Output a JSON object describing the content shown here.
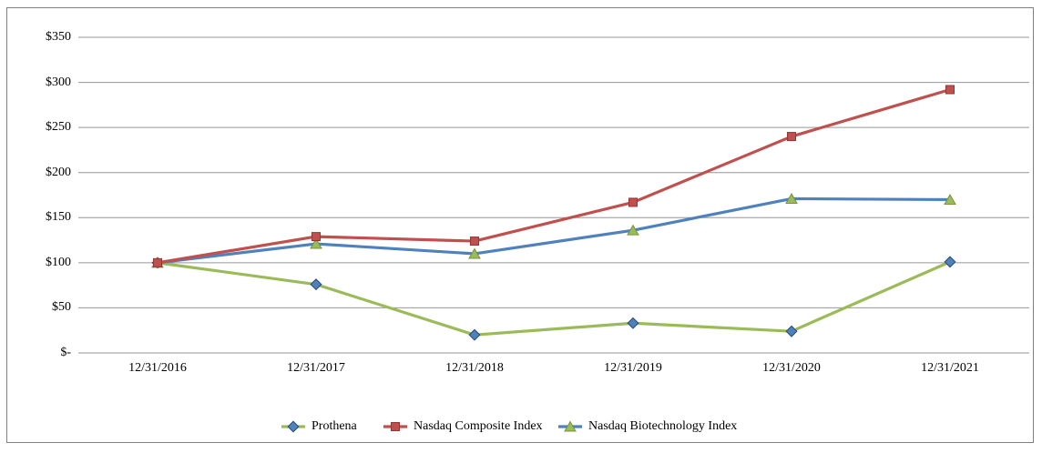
{
  "chart_data": {
    "type": "line",
    "title": "",
    "xlabel": "",
    "ylabel": "",
    "categories": [
      "12/31/2016",
      "12/31/2017",
      "12/31/2018",
      "12/31/2019",
      "12/31/2020",
      "12/31/2021"
    ],
    "series": [
      {
        "name": "Prothena",
        "values": [
          100,
          76,
          20,
          33,
          24,
          101
        ],
        "line_color": "#9BBB59",
        "marker": "diamond",
        "marker_color": "#4F81BD",
        "marker_border": "#27496F"
      },
      {
        "name": "Nasdaq Composite Index",
        "values": [
          100,
          129,
          124,
          167,
          240,
          292
        ],
        "line_color": "#C0504D",
        "marker": "square",
        "marker_color": "#C0504D",
        "marker_border": "#943634"
      },
      {
        "name": "Nasdaq Biotechnology Index",
        "values": [
          100,
          121,
          110,
          136,
          171,
          170
        ],
        "line_color": "#4F81BD",
        "marker": "triangle",
        "marker_color": "#9BBB59",
        "marker_border": "#77933C"
      }
    ],
    "y_axis": {
      "tick_labels": [
        "$350",
        "$300",
        "$250",
        "$200",
        "$150",
        "$100",
        "$50",
        "$-"
      ],
      "tick_values": [
        350,
        300,
        250,
        200,
        150,
        100,
        50,
        0
      ],
      "ylim": [
        0,
        350
      ]
    },
    "gridlines": "horizontal",
    "legend_position": "bottom"
  },
  "colors": {
    "gridline": "#969696",
    "frame_border": "#808080",
    "text": "#000000",
    "background": "#FFFFFF"
  }
}
